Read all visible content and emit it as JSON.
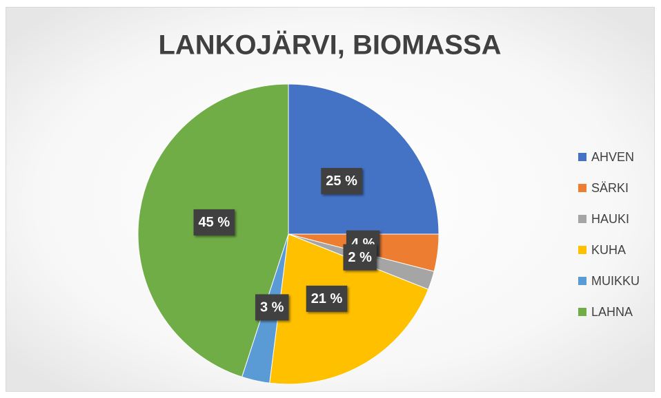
{
  "chart_data": {
    "type": "pie",
    "title": "LANKOJÄRVI, BIOMASSA",
    "categories": [
      "AHVEN",
      "SÄRKI",
      "HAUKI",
      "KUHA",
      "MUIKKU",
      "LAHNA"
    ],
    "values": [
      25,
      4,
      2,
      21,
      3,
      45
    ],
    "value_labels": [
      "25 %",
      "4 %",
      "2 %",
      "21 %",
      "3 %",
      "45 %"
    ],
    "colors": [
      "#4472c4",
      "#ed7d31",
      "#a5a5a5",
      "#ffc000",
      "#5b9bd5",
      "#70ad47"
    ],
    "legend": "right"
  }
}
